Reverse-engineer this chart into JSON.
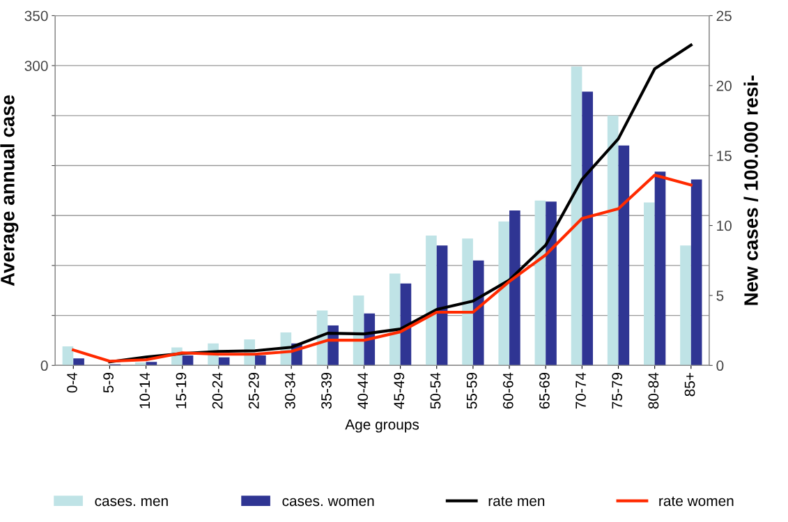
{
  "chart_data": {
    "type": "bar",
    "xlabel": "Age groups",
    "ylabel": "Average annual case",
    "y2label": "New cases / 100.000 resi-",
    "categories": [
      "0-4",
      "5-9",
      "10-14",
      "15-19",
      "20-24",
      "25-29",
      "30-34",
      "35-39",
      "40-44",
      "45-49",
      "50-54",
      "55-59",
      "60-64",
      "65-69",
      "70-74",
      "75-79",
      "80-84",
      "85+"
    ],
    "series": [
      {
        "name": "cases. men",
        "color": "#bfe3e6",
        "values": [
          19,
          null,
          3,
          18,
          22,
          26,
          33,
          55,
          70,
          92,
          130,
          127,
          144,
          165,
          299,
          250,
          163,
          120
        ]
      },
      {
        "name": "cases. women",
        "color": "#2f3593",
        "values": [
          7,
          1,
          3.5,
          10,
          8,
          10,
          22,
          40,
          52,
          82,
          120,
          105,
          155,
          164,
          274,
          220,
          194,
          186
        ]
      },
      {
        "name": "rate men",
        "type": "line",
        "axis": "y2",
        "color": "#000000",
        "values": [
          null,
          0.25,
          0.6,
          0.85,
          1.0,
          1.05,
          1.3,
          2.3,
          2.25,
          2.6,
          4.0,
          4.6,
          6.1,
          8.6,
          13.3,
          16.2,
          21.2,
          22.9
        ]
      },
      {
        "name": "rate women",
        "type": "line",
        "axis": "y2",
        "color": "#ff2a00",
        "values": [
          1.1,
          0.3,
          0.4,
          0.9,
          0.8,
          0.8,
          1.0,
          1.8,
          1.8,
          2.4,
          3.8,
          3.8,
          6.0,
          7.9,
          10.5,
          11.2,
          13.6,
          12.9
        ]
      }
    ],
    "ylim": [
      0,
      350
    ],
    "yticks": [
      0,
      {
        "value": 50,
        "label": null
      },
      {
        "value": 100,
        "label": null
      },
      {
        "value": 150,
        "label": null
      },
      {
        "value": 200,
        "label": null
      },
      {
        "value": 250,
        "label": null
      },
      300,
      350
    ],
    "y2lim": [
      0,
      25
    ],
    "y2ticks": [
      0,
      5,
      10,
      15,
      20,
      25
    ],
    "grid": "y",
    "legend": "bottom",
    "marker": "none",
    "line_style": "solid"
  }
}
